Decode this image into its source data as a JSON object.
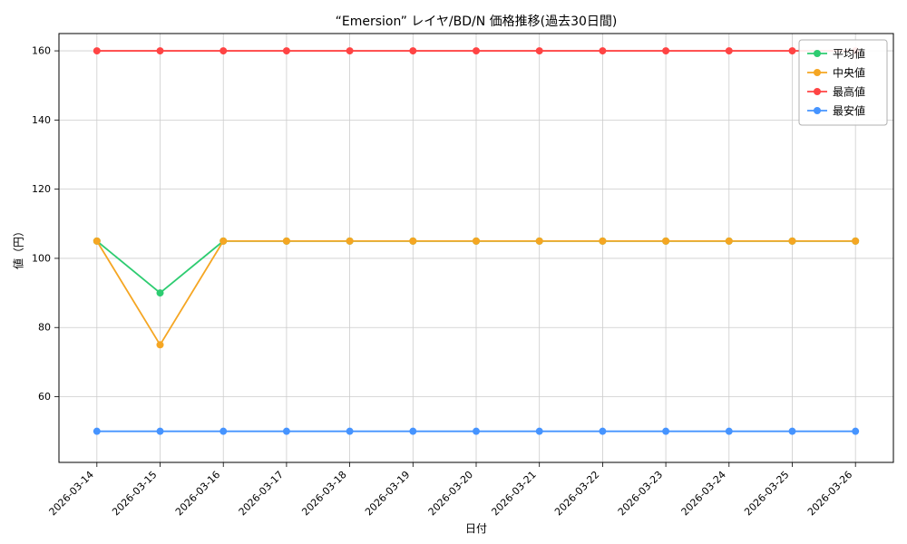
{
  "chart": {
    "title": "“Emersion” レイヤ/BD/N 価格推移(過去30日間)",
    "xlabel": "日付",
    "ylabel": "値（円）"
  },
  "chart_data": {
    "type": "line",
    "title": "“Emersion” レイヤ/BD/N 価格推移(過去30日間)",
    "xlabel": "日付",
    "ylabel": "値（円）",
    "x": [
      "2026-03-14",
      "2026-03-15",
      "2026-03-16",
      "2026-03-17",
      "2026-03-18",
      "2026-03-19",
      "2026-03-20",
      "2026-03-21",
      "2026-03-22",
      "2026-03-23",
      "2026-03-24",
      "2026-03-25",
      "2026-03-26"
    ],
    "series": [
      {
        "name": "平均値",
        "color": "#2ecc71",
        "values": [
          105,
          90,
          105,
          105,
          105,
          105,
          105,
          105,
          105,
          105,
          105,
          105,
          105
        ]
      },
      {
        "name": "中央値",
        "color": "#f5a623",
        "values": [
          105,
          75,
          105,
          105,
          105,
          105,
          105,
          105,
          105,
          105,
          105,
          105,
          105
        ]
      },
      {
        "name": "最高値",
        "color": "#ff4444",
        "values": [
          160,
          160,
          160,
          160,
          160,
          160,
          160,
          160,
          160,
          160,
          160,
          160,
          160
        ]
      },
      {
        "name": "最安値",
        "color": "#4694ff",
        "values": [
          50,
          50,
          50,
          50,
          50,
          50,
          50,
          50,
          50,
          50,
          50,
          50,
          50
        ]
      }
    ],
    "yticks": [
      60,
      80,
      100,
      120,
      140,
      160
    ],
    "ylim": [
      41,
      165
    ],
    "grid": true,
    "legend_position": "upper right"
  }
}
